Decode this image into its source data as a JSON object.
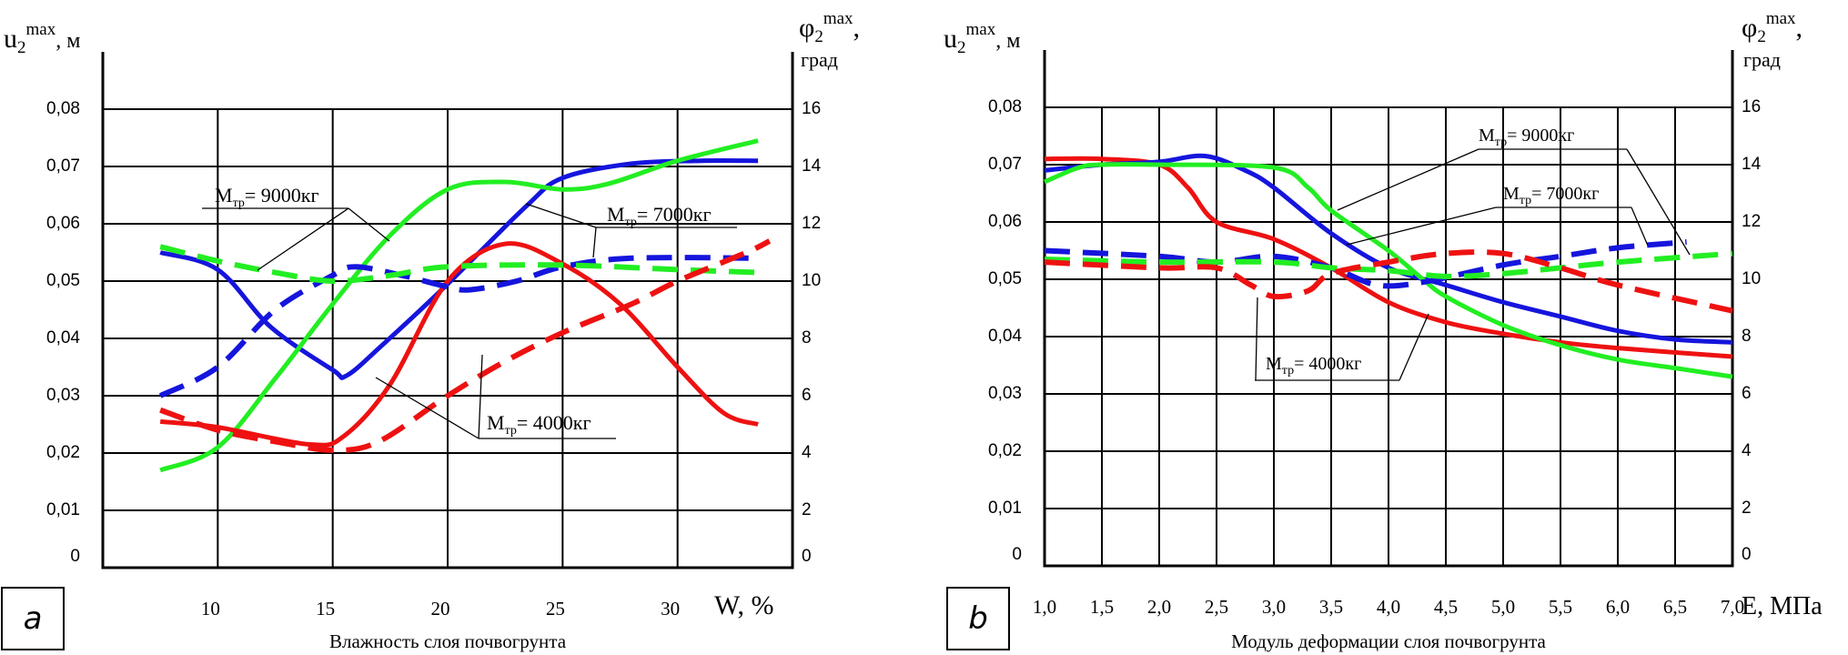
{
  "colors": {
    "red": "#ee1111",
    "blue": "#1515dd",
    "green": "#22ee22",
    "axis": "#000000"
  },
  "chart_data": [
    {
      "type": "line",
      "panel_label": "a",
      "xlabel": "W, %",
      "x_title": "Влажность слоя почвогрунта",
      "ylabel_left": {
        "main": "u",
        "sub": "2",
        "sup": "max",
        "unit": ", м"
      },
      "ylabel_right": {
        "main": "φ",
        "sub": "2",
        "sup": "max",
        "unit": ",",
        "unit2": "град"
      },
      "xlim": [
        5,
        35
      ],
      "ylim_left": [
        0,
        0.08
      ],
      "ylim_right": [
        0,
        16
      ],
      "grid": true,
      "x_ticks": [
        10,
        15,
        20,
        25,
        30
      ],
      "x_tick_labels": [
        "10",
        "15",
        "20",
        "25",
        "30"
      ],
      "y_tick_labels_left": [
        "0",
        "0,01",
        "0,02",
        "0,03",
        "0,04",
        "0,05",
        "0,06",
        "0,07",
        "0,08"
      ],
      "y_tick_labels_right": [
        "0",
        "2",
        "4",
        "6",
        "8",
        "10",
        "12",
        "14",
        "16"
      ],
      "annotations": [
        {
          "prefix": "M",
          "sub": "тр",
          "suffix": "= 9000кг"
        },
        {
          "prefix": "M",
          "sub": "тр",
          "suffix": "= 7000кг"
        },
        {
          "prefix": "M",
          "sub": "тр",
          "suffix": "= 4000кг"
        }
      ],
      "series": [
        {
          "color": "blue",
          "style": "solid",
          "axis": "left",
          "x": [
            7.5,
            10,
            12.3,
            15,
            15.6,
            17.2,
            20,
            23.4,
            25,
            28,
            31,
            33.5
          ],
          "y": [
            0.055,
            0.052,
            0.042,
            0.0345,
            0.0335,
            0.039,
            0.0495,
            0.063,
            0.068,
            0.0705,
            0.071,
            0.071
          ]
        },
        {
          "color": "green",
          "style": "solid",
          "axis": "left",
          "x": [
            7.5,
            10,
            12.5,
            15,
            17.5,
            20,
            22.5,
            25,
            27,
            30,
            33.5
          ],
          "y": [
            0.017,
            0.021,
            0.033,
            0.046,
            0.058,
            0.066,
            0.0673,
            0.066,
            0.067,
            0.071,
            0.0745
          ]
        },
        {
          "color": "red",
          "style": "solid",
          "axis": "left",
          "x": [
            7.5,
            10,
            14,
            15.5,
            17.5,
            20,
            22.5,
            25,
            27.5,
            30,
            32,
            33.5
          ],
          "y": [
            0.0255,
            0.0245,
            0.0215,
            0.023,
            0.032,
            0.05,
            0.0565,
            0.053,
            0.046,
            0.035,
            0.027,
            0.025
          ]
        },
        {
          "color": "blue",
          "style": "dashed",
          "axis": "right",
          "x": [
            7.5,
            10,
            12.5,
            15,
            16,
            18,
            20,
            21,
            23,
            25,
            28,
            33.5
          ],
          "y": [
            6,
            7,
            9,
            10.2,
            10.5,
            10.2,
            9.8,
            9.7,
            10,
            10.5,
            10.8,
            10.8
          ]
        },
        {
          "color": "green",
          "style": "dashed",
          "axis": "right",
          "x": [
            7.5,
            10,
            12.5,
            15,
            17.5,
            20,
            25,
            30,
            33.5
          ],
          "y": [
            11.2,
            10.7,
            10.3,
            10,
            10.2,
            10.5,
            10.56,
            10.4,
            10.3
          ]
        },
        {
          "color": "red",
          "style": "dashed",
          "axis": "right",
          "x": [
            7.5,
            10,
            12.5,
            15,
            17,
            20,
            22.5,
            25,
            28,
            30,
            33,
            34
          ],
          "y": [
            5.5,
            4.8,
            4.4,
            4.1,
            4.4,
            6,
            7.2,
            8.2,
            9.2,
            10,
            11,
            11.4
          ]
        }
      ]
    },
    {
      "type": "line",
      "panel_label": "b",
      "xlabel": "E, МПа",
      "x_title": "Модуль деформации слоя почвогрунта",
      "ylabel_left": {
        "main": "u",
        "sub": "2",
        "sup": "max",
        "unit": ", м"
      },
      "ylabel_right": {
        "main": "φ",
        "sub": "2",
        "sup": "max",
        "unit": ",",
        "unit2": "град"
      },
      "xlim": [
        1.0,
        7.0
      ],
      "ylim_left": [
        0,
        0.08
      ],
      "ylim_right": [
        0,
        16
      ],
      "grid": true,
      "x_ticks": [
        1.0,
        1.5,
        2.0,
        2.5,
        3.0,
        3.5,
        4.0,
        4.5,
        5.0,
        5.5,
        6.0,
        6.5,
        7.0
      ],
      "x_tick_labels": [
        "1,0",
        "1,5",
        "2,0",
        "2,5",
        "3,0",
        "3,5",
        "4,0",
        "4,5",
        "5,0",
        "5,5",
        "6,0",
        "6,5",
        "7,0"
      ],
      "y_tick_labels_left": [
        "0",
        "0,01",
        "0,02",
        "0,03",
        "0,04",
        "0,05",
        "0,06",
        "0,07",
        "0,08"
      ],
      "y_tick_labels_right": [
        "0",
        "2",
        "4",
        "6",
        "8",
        "10",
        "12",
        "14",
        "16"
      ],
      "annotations": [
        {
          "prefix": "M",
          "sub": "тр",
          "suffix": "= 9000кг"
        },
        {
          "prefix": "M",
          "sub": "тр",
          "suffix": "= 7000кг"
        },
        {
          "prefix": "M",
          "sub": "тр",
          "suffix": "= 4000кг"
        }
      ],
      "series": [
        {
          "color": "red",
          "style": "solid",
          "axis": "left",
          "x": [
            1.0,
            1.5,
            2.0,
            2.25,
            2.5,
            3.0,
            3.5,
            4.0,
            4.5,
            5.0,
            5.5,
            6.0,
            7.0
          ],
          "y": [
            0.071,
            0.071,
            0.07,
            0.066,
            0.06,
            0.057,
            0.052,
            0.046,
            0.0425,
            0.0405,
            0.039,
            0.038,
            0.0365
          ]
        },
        {
          "color": "blue",
          "style": "solid",
          "axis": "left",
          "x": [
            1.0,
            1.5,
            2.0,
            2.4,
            2.75,
            3.0,
            3.5,
            4.0,
            4.5,
            5.0,
            5.5,
            6.0,
            6.5,
            7.0
          ],
          "y": [
            0.069,
            0.07,
            0.0705,
            0.0715,
            0.069,
            0.066,
            0.058,
            0.052,
            0.049,
            0.046,
            0.0435,
            0.041,
            0.0395,
            0.039
          ]
        },
        {
          "color": "green",
          "style": "solid",
          "axis": "left",
          "x": [
            1.0,
            1.3,
            1.5,
            2.0,
            3.0,
            3.3,
            3.5,
            4.0,
            4.3,
            4.5,
            5.0,
            5.5,
            6.0,
            6.5,
            7.0
          ],
          "y": [
            0.067,
            0.0695,
            0.07,
            0.07,
            0.0695,
            0.066,
            0.062,
            0.055,
            0.05,
            0.047,
            0.042,
            0.0385,
            0.036,
            0.0345,
            0.033
          ]
        },
        {
          "color": "blue",
          "style": "dashed",
          "axis": "right",
          "x": [
            1.0,
            2.0,
            2.5,
            3.0,
            3.5,
            3.9,
            4.3,
            5.0,
            5.5,
            6.0,
            6.6
          ],
          "y": [
            11,
            10.8,
            10.6,
            10.8,
            10.4,
            9.8,
            9.9,
            10.5,
            10.8,
            11.1,
            11.3
          ]
        },
        {
          "color": "green",
          "style": "dashed",
          "axis": "right",
          "x": [
            1.0,
            2.0,
            3.0,
            3.5,
            4.0,
            4.5,
            5.0,
            5.5,
            6.0,
            7.0
          ],
          "y": [
            10.7,
            10.6,
            10.6,
            10.4,
            10.3,
            10.1,
            10.2,
            10.4,
            10.6,
            10.9
          ]
        },
        {
          "color": "red",
          "style": "dashed",
          "axis": "right",
          "x": [
            1.0,
            2.0,
            2.5,
            2.8,
            3.0,
            3.3,
            3.5,
            4.0,
            4.5,
            5.0,
            5.5,
            6.0,
            7.0
          ],
          "y": [
            10.6,
            10.4,
            10.4,
            9.8,
            9.4,
            9.6,
            10.2,
            10.6,
            10.9,
            10.9,
            10.4,
            9.8,
            8.9
          ]
        }
      ]
    }
  ]
}
